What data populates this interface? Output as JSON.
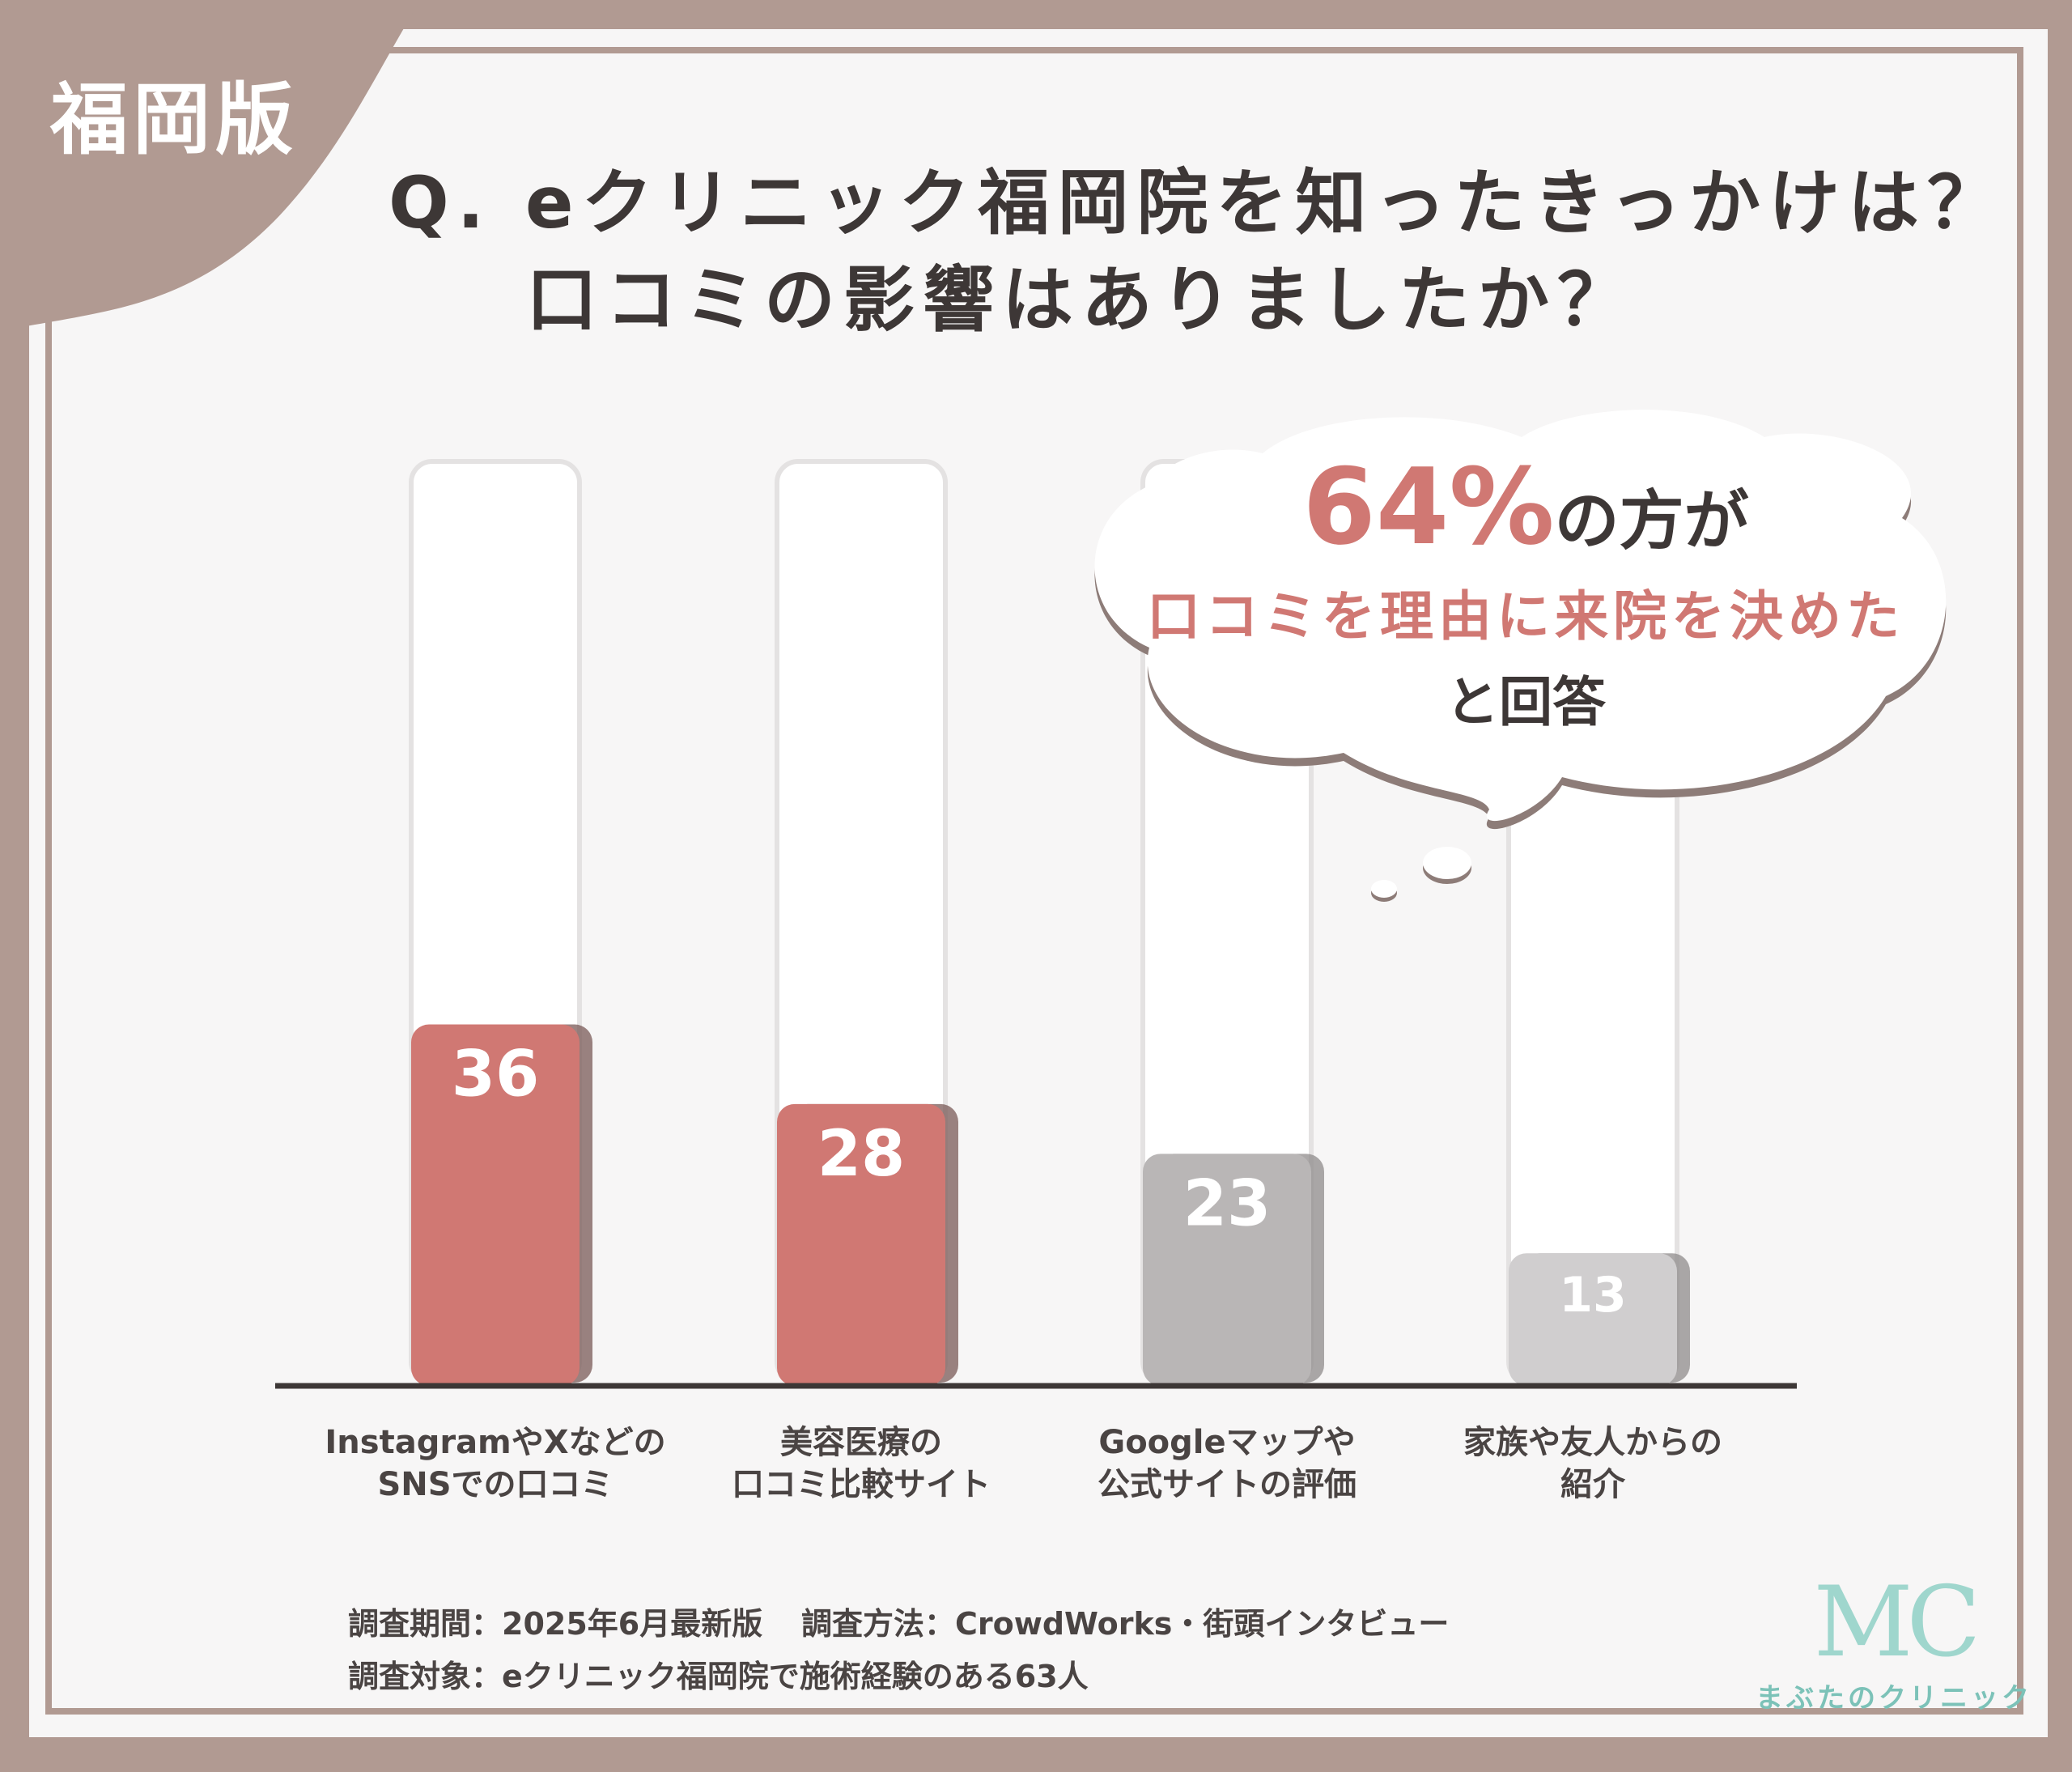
{
  "region_label": "福岡版",
  "question": {
    "line1": "Q. eクリニック福岡院を知ったきっかけは？",
    "line2": "口コミの影響はありましたか？"
  },
  "callout": {
    "percent": "64%",
    "percent_suffix": "の方が",
    "line2": "口コミを理由に来院を決めた",
    "line3": "と回答"
  },
  "chart_data": {
    "type": "bar",
    "title": "",
    "xlabel": "",
    "ylabel": "",
    "categories": [
      [
        "InstagramやXなどの",
        "SNSでの口コミ"
      ],
      [
        "美容医療の",
        "口コミ比較サイト"
      ],
      [
        "Googleマップや",
        "公式サイトの評価"
      ],
      [
        "家族や友人からの",
        "紹介"
      ]
    ],
    "values": [
      36,
      28,
      23,
      13
    ],
    "value_labels": [
      "36",
      "28",
      "23",
      "13"
    ],
    "bar_colors": [
      "#d07873",
      "#d07873",
      "#b9b6b6",
      "#d0cecf"
    ],
    "ylim": [
      0,
      100
    ],
    "grid": false,
    "legend": "none"
  },
  "notes": {
    "period": "調査期間：2025年6月最新版",
    "method": "調査方法：CrowdWorks・街頭インタビュー",
    "target": "調査対象：eクリニック福岡院で施術経験のある63人"
  },
  "logo": {
    "mark": "MC",
    "name": "まぶたのクリニック"
  },
  "colors": {
    "frame": "#b19a92",
    "accent": "#d07873",
    "gray_bar": "#b9b6b6",
    "light_bar": "#d0cecf",
    "text": "#3d3736",
    "logo": "#9fd6cd"
  }
}
